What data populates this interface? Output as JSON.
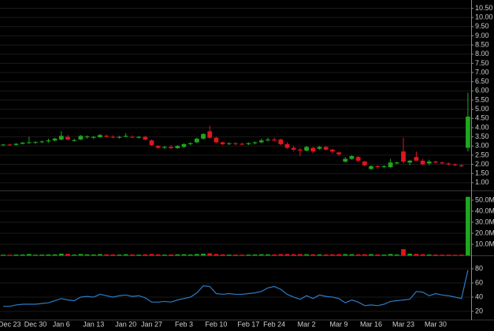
{
  "chart_data": [
    {
      "type": "candlestick",
      "up_color": "#1ea81e",
      "down_color": "#e0161e",
      "open": [
        3.05,
        3.08,
        3.06,
        3.12,
        3.18,
        3.18,
        3.22,
        3.25,
        3.3,
        3.35,
        3.5,
        3.3,
        3.35,
        3.48,
        3.45,
        3.48,
        3.55,
        3.5,
        3.45,
        3.5,
        3.5,
        3.45,
        3.5,
        3.3,
        3.0,
        2.9,
        2.95,
        2.88,
        2.95,
        3.1,
        3.2,
        3.4,
        3.8,
        3.45,
        3.2,
        3.12,
        3.15,
        3.12,
        3.1,
        3.15,
        3.2,
        3.3,
        3.35,
        3.35,
        3.1,
        2.9,
        2.8,
        2.75,
        2.9,
        2.85,
        2.95,
        2.8,
        2.65,
        2.15,
        2.3,
        2.4,
        2.15,
        1.75,
        1.9,
        1.85,
        1.85,
        2.05,
        2.7,
        2.1,
        2.4,
        2.2,
        2.05,
        2.15,
        2.1,
        2.05,
        2.0,
        1.95,
        2.9
      ],
      "high": [
        3.1,
        3.12,
        3.15,
        3.22,
        3.5,
        3.25,
        3.3,
        3.4,
        3.45,
        3.8,
        3.6,
        3.4,
        3.6,
        3.58,
        3.55,
        3.65,
        3.62,
        3.58,
        3.55,
        3.7,
        3.58,
        3.55,
        3.55,
        3.35,
        3.05,
        3.0,
        3.05,
        3.05,
        3.15,
        3.2,
        3.45,
        3.7,
        4.1,
        3.5,
        3.25,
        3.2,
        3.2,
        3.18,
        3.2,
        3.25,
        3.4,
        3.45,
        3.45,
        3.4,
        3.2,
        3.0,
        2.9,
        3.0,
        2.95,
        3.0,
        3.0,
        2.85,
        2.7,
        2.4,
        2.5,
        2.45,
        2.2,
        1.95,
        1.95,
        1.95,
        2.3,
        2.15,
        3.45,
        2.25,
        2.7,
        2.3,
        2.25,
        2.2,
        2.15,
        2.1,
        2.05,
        2.0,
        5.9
      ],
      "low": [
        3.0,
        3.02,
        3.02,
        3.08,
        3.12,
        3.1,
        3.15,
        3.18,
        3.25,
        3.3,
        3.3,
        3.22,
        3.32,
        3.4,
        3.38,
        3.45,
        3.45,
        3.42,
        3.4,
        3.48,
        3.45,
        3.4,
        3.3,
        3.0,
        2.85,
        2.85,
        2.85,
        2.85,
        2.9,
        3.05,
        3.15,
        3.35,
        3.4,
        3.15,
        3.05,
        3.05,
        3.05,
        3.05,
        3.05,
        3.08,
        3.15,
        3.25,
        3.25,
        3.05,
        2.85,
        2.7,
        2.45,
        2.7,
        2.6,
        2.8,
        2.75,
        2.6,
        2.45,
        2.1,
        2.25,
        2.15,
        1.9,
        1.7,
        1.75,
        1.8,
        1.8,
        2.0,
        2.05,
        1.95,
        2.2,
        1.95,
        1.95,
        2.05,
        2.0,
        1.95,
        1.9,
        1.85,
        2.7
      ],
      "close": [
        3.08,
        3.05,
        3.12,
        3.18,
        3.2,
        3.22,
        3.25,
        3.3,
        3.4,
        3.55,
        3.35,
        3.32,
        3.55,
        3.52,
        3.5,
        3.6,
        3.5,
        3.48,
        3.5,
        3.55,
        3.48,
        3.5,
        3.35,
        3.05,
        2.9,
        2.95,
        2.88,
        3.0,
        3.1,
        3.15,
        3.4,
        3.65,
        3.45,
        3.2,
        3.1,
        3.15,
        3.12,
        3.1,
        3.15,
        3.2,
        3.3,
        3.35,
        3.3,
        3.1,
        2.9,
        2.8,
        2.75,
        2.95,
        2.7,
        2.95,
        2.8,
        2.7,
        2.55,
        2.3,
        2.45,
        2.2,
        1.95,
        1.9,
        1.85,
        1.9,
        2.1,
        2.1,
        2.15,
        2.2,
        2.2,
        2.0,
        2.15,
        2.1,
        2.05,
        2.0,
        1.95,
        1.9,
        4.6
      ],
      "ylim": [
        0.65,
        10.95
      ],
      "yticks": [
        {
          "value": 1,
          "label": "1.00"
        },
        {
          "value": 1.5,
          "label": "1.50"
        },
        {
          "value": 2,
          "label": "2.00"
        },
        {
          "value": 2.5,
          "label": "2.50"
        },
        {
          "value": 3,
          "label": "3.00"
        },
        {
          "value": 3.5,
          "label": "3.50"
        },
        {
          "value": 4,
          "label": "4.00"
        },
        {
          "value": 4.5,
          "label": "4.50"
        },
        {
          "value": 5,
          "label": "5.00"
        },
        {
          "value": 5.5,
          "label": "5.50"
        },
        {
          "value": 6,
          "label": "6.00"
        },
        {
          "value": 6.5,
          "label": "6.50"
        },
        {
          "value": 7,
          "label": "7.00"
        },
        {
          "value": 7.5,
          "label": "7.50"
        },
        {
          "value": 8,
          "label": "8.00"
        },
        {
          "value": 8.5,
          "label": "8.50"
        },
        {
          "value": 9,
          "label": "9.00"
        },
        {
          "value": 9.5,
          "label": "9.50"
        },
        {
          "value": 10,
          "label": "10.00"
        },
        {
          "value": 10.5,
          "label": "10.50"
        }
      ]
    },
    {
      "type": "bar",
      "values": [
        600000,
        500000,
        700000,
        800000,
        1200000,
        600000,
        700000,
        800000,
        900000,
        1500000,
        1300000,
        700000,
        1200000,
        900000,
        800000,
        1100000,
        900000,
        800000,
        700000,
        1000000,
        800000,
        700000,
        900000,
        1200000,
        900000,
        700000,
        800000,
        900000,
        1000000,
        800000,
        1200000,
        1500000,
        1800000,
        1200000,
        900000,
        700000,
        700000,
        600000,
        700000,
        800000,
        1000000,
        900000,
        800000,
        1100000,
        1200000,
        1000000,
        1100000,
        1000000,
        900000,
        900000,
        800000,
        900000,
        1000000,
        1100000,
        1000000,
        900000,
        1000000,
        1100000,
        800000,
        700000,
        1200000,
        800000,
        5600000,
        1500000,
        1300000,
        1000000,
        800000,
        700000,
        600000,
        600000,
        500000,
        600000,
        53000000
      ],
      "ylim": [
        0,
        56400000
      ],
      "yticks": [
        {
          "value": 10000000,
          "label": "10.0M"
        },
        {
          "value": 20000000,
          "label": "20.0M"
        },
        {
          "value": 30000000,
          "label": "30.0M"
        },
        {
          "value": 40000000,
          "label": "40.0M"
        },
        {
          "value": 50000000,
          "label": "50.0M"
        }
      ]
    },
    {
      "type": "line",
      "color": "#2b7bc4",
      "categories": [
        null,
        "Dec 23",
        null,
        null,
        null,
        "Dec 30",
        null,
        null,
        null,
        "Jan 6",
        null,
        null,
        null,
        null,
        "Jan 13",
        null,
        null,
        null,
        null,
        "Jan 20",
        null,
        null,
        null,
        "Jan 27",
        null,
        null,
        null,
        null,
        "Feb 3",
        null,
        null,
        null,
        null,
        "Feb 10",
        null,
        null,
        null,
        null,
        "Feb 17",
        null,
        null,
        null,
        "Feb 24",
        null,
        null,
        null,
        null,
        "Mar 2",
        null,
        null,
        null,
        null,
        "Mar 9",
        null,
        null,
        null,
        null,
        "Mar 16",
        null,
        null,
        null,
        null,
        "Mar 23",
        null,
        null,
        null,
        null,
        "Mar 30",
        null,
        null,
        null,
        null,
        null
      ],
      "values": [
        27,
        27,
        29,
        30,
        30,
        30,
        31,
        32,
        35,
        38,
        36,
        35,
        40,
        41,
        40,
        44,
        42,
        40,
        42,
        43,
        41,
        42,
        39,
        33,
        33,
        34,
        33,
        36,
        38,
        40,
        46,
        56,
        55,
        45,
        44,
        45,
        44,
        44,
        45,
        46,
        48,
        53,
        55,
        51,
        44,
        40,
        37,
        42,
        38,
        43,
        41,
        40,
        38,
        32,
        36,
        33,
        28,
        29,
        28,
        30,
        34,
        35,
        36,
        37,
        48,
        47,
        42,
        45,
        43,
        42,
        40,
        38,
        78
      ],
      "ylim": [
        8.9,
        96.7
      ],
      "yticks": [
        20,
        40,
        60,
        80
      ]
    }
  ]
}
